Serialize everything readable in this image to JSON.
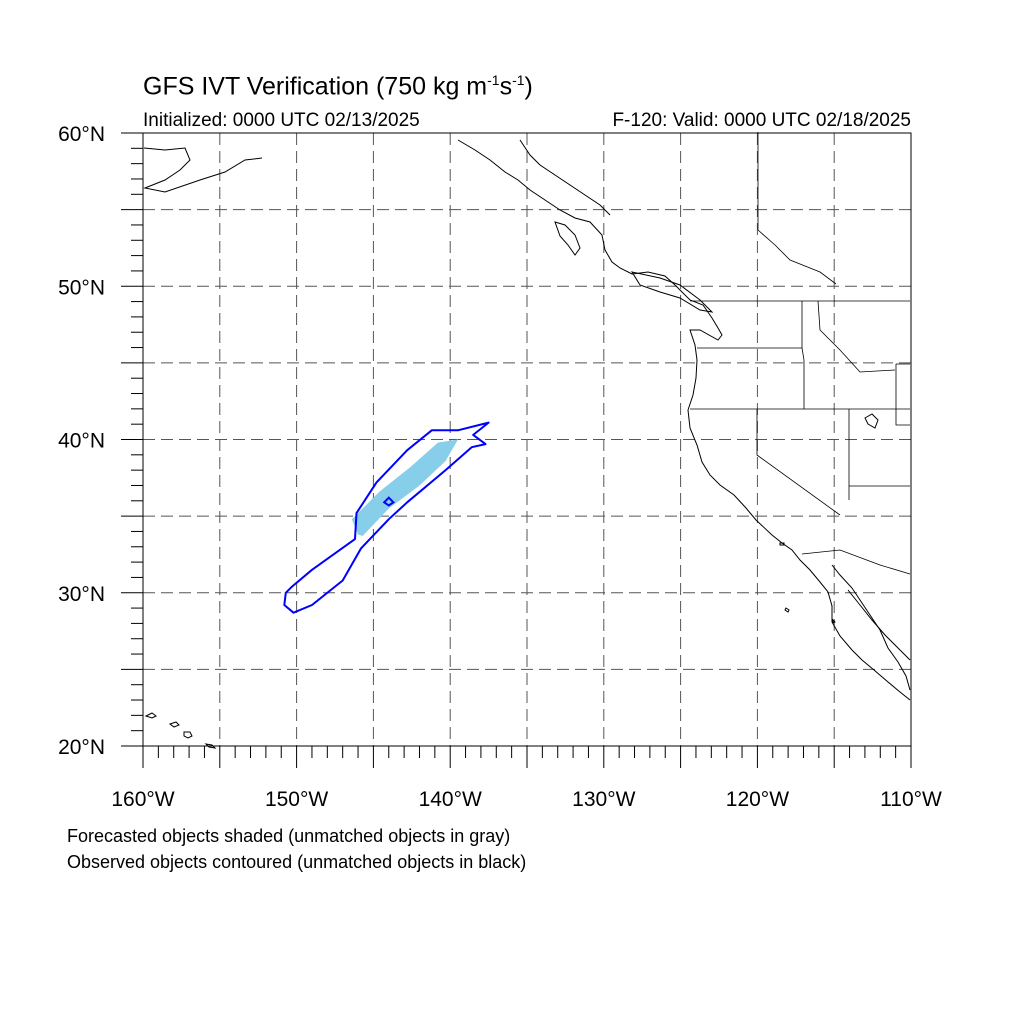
{
  "title": {
    "main": "GFS IVT Verification (750 kg m",
    "exp1": "-1",
    "mid": "s",
    "exp2": "-1",
    "end": ")"
  },
  "initialized": "Initialized: 0000 UTC 02/13/2025",
  "valid": "F-120: Valid: 0000 UTC 02/18/2025",
  "notes": [
    "Forecasted objects shaded (unmatched objects in gray)",
    "Observed objects contoured (unmatched objects in black)"
  ],
  "map": {
    "lon_range": [
      -160,
      -110
    ],
    "lat_range": [
      20,
      60
    ],
    "grid_lines": "dashed gray every 5 degrees",
    "lon_labels": [
      "160°W",
      "150°W",
      "140°W",
      "130°W",
      "120°W",
      "110°W"
    ],
    "lat_labels": [
      "60°N",
      "50°N",
      "40°N",
      "30°N",
      "20°N"
    ]
  },
  "colors": {
    "forecast_fill": "#87ceeb",
    "observed_contour": "#0000ff",
    "coastline": "#000000",
    "grid": "#555555"
  },
  "objects": {
    "forecast": {
      "type": "matched forecast object",
      "lon_lat": [
        [
          -145.7,
          33.7
        ],
        [
          -144.0,
          35.5
        ],
        [
          -142.0,
          37.0
        ],
        [
          -140.3,
          38.6
        ],
        [
          -139.5,
          40.0
        ],
        [
          -140.8,
          39.8
        ],
        [
          -142.6,
          38.2
        ],
        [
          -144.6,
          36.6
        ],
        [
          -146.4,
          34.8
        ],
        [
          -146.0,
          33.8
        ]
      ]
    },
    "observed": {
      "type": "matched observed object",
      "lon_lat": [
        [
          -150.2,
          28.7
        ],
        [
          -149.0,
          29.2
        ],
        [
          -147.0,
          30.8
        ],
        [
          -145.8,
          32.9
        ],
        [
          -144.0,
          34.8
        ],
        [
          -142.8,
          35.9
        ],
        [
          -140.3,
          38.0
        ],
        [
          -138.6,
          39.5
        ],
        [
          -137.7,
          39.7
        ],
        [
          -138.5,
          40.3
        ],
        [
          -137.5,
          41.1
        ],
        [
          -139.5,
          40.6
        ],
        [
          -141.2,
          40.6
        ],
        [
          -142.8,
          39.3
        ],
        [
          -144.8,
          37.2
        ],
        [
          -146.1,
          35.2
        ],
        [
          -146.2,
          33.5
        ],
        [
          -149.0,
          31.5
        ],
        [
          -150.3,
          30.4
        ],
        [
          -150.7,
          30.0
        ],
        [
          -150.8,
          29.2
        ]
      ]
    },
    "observed_small": {
      "lon_lat": [
        [
          -144.3,
          35.9
        ],
        [
          -144.0,
          36.2
        ],
        [
          -143.7,
          35.9
        ],
        [
          -144.0,
          35.7
        ]
      ]
    }
  }
}
